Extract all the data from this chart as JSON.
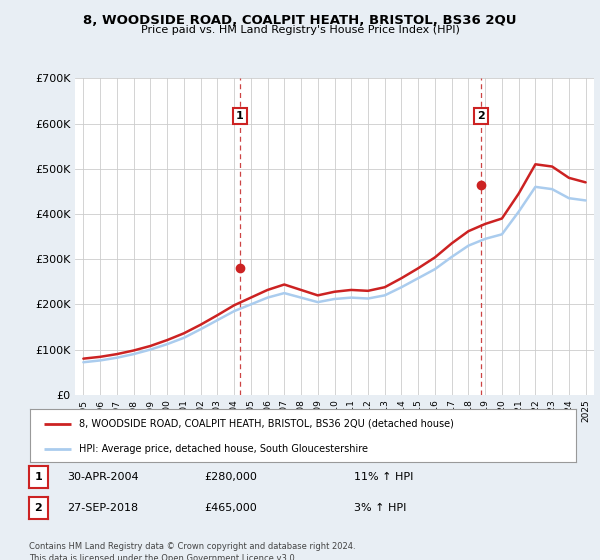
{
  "title": "8, WOODSIDE ROAD, COALPIT HEATH, BRISTOL, BS36 2QU",
  "subtitle": "Price paid vs. HM Land Registry's House Price Index (HPI)",
  "legend_line1": "8, WOODSIDE ROAD, COALPIT HEATH, BRISTOL, BS36 2QU (detached house)",
  "legend_line2": "HPI: Average price, detached house, South Gloucestershire",
  "transaction1_date": "30-APR-2004",
  "transaction1_price": "£280,000",
  "transaction1_hpi": "11% ↑ HPI",
  "transaction2_date": "27-SEP-2018",
  "transaction2_price": "£465,000",
  "transaction2_hpi": "3% ↑ HPI",
  "footer": "Contains HM Land Registry data © Crown copyright and database right 2024.\nThis data is licensed under the Open Government Licence v3.0.",
  "hpi_color": "#aaccee",
  "price_color": "#cc2222",
  "dashed_line_color": "#cc4444",
  "background_color": "#e8eef4",
  "plot_bg_color": "#ffffff",
  "ylim": [
    0,
    700000
  ],
  "yticks": [
    0,
    100000,
    200000,
    300000,
    400000,
    500000,
    600000,
    700000
  ],
  "ytick_labels": [
    "£0",
    "£100K",
    "£200K",
    "£300K",
    "£400K",
    "£500K",
    "£600K",
    "£700K"
  ],
  "xmin": 1994.5,
  "xmax": 2025.5,
  "years": [
    1995,
    1996,
    1997,
    1998,
    1999,
    2000,
    2001,
    2002,
    2003,
    2004,
    2005,
    2006,
    2007,
    2008,
    2009,
    2010,
    2011,
    2012,
    2013,
    2014,
    2015,
    2016,
    2017,
    2018,
    2019,
    2020,
    2021,
    2022,
    2023,
    2024,
    2025
  ],
  "hpi_values": [
    72000,
    76000,
    82000,
    90000,
    100000,
    112000,
    126000,
    145000,
    165000,
    185000,
    200000,
    215000,
    225000,
    215000,
    205000,
    212000,
    215000,
    213000,
    220000,
    238000,
    258000,
    278000,
    305000,
    330000,
    345000,
    355000,
    405000,
    460000,
    455000,
    435000,
    430000
  ],
  "price_values": [
    80000,
    84000,
    90000,
    98000,
    108000,
    121000,
    136000,
    155000,
    176000,
    198000,
    215000,
    232000,
    244000,
    232000,
    220000,
    228000,
    232000,
    230000,
    238000,
    258000,
    280000,
    304000,
    335000,
    362000,
    378000,
    390000,
    445000,
    510000,
    505000,
    480000,
    470000
  ],
  "transaction1_x": 2004.33,
  "transaction1_y": 280000,
  "transaction2_x": 2018.75,
  "transaction2_y": 465000
}
